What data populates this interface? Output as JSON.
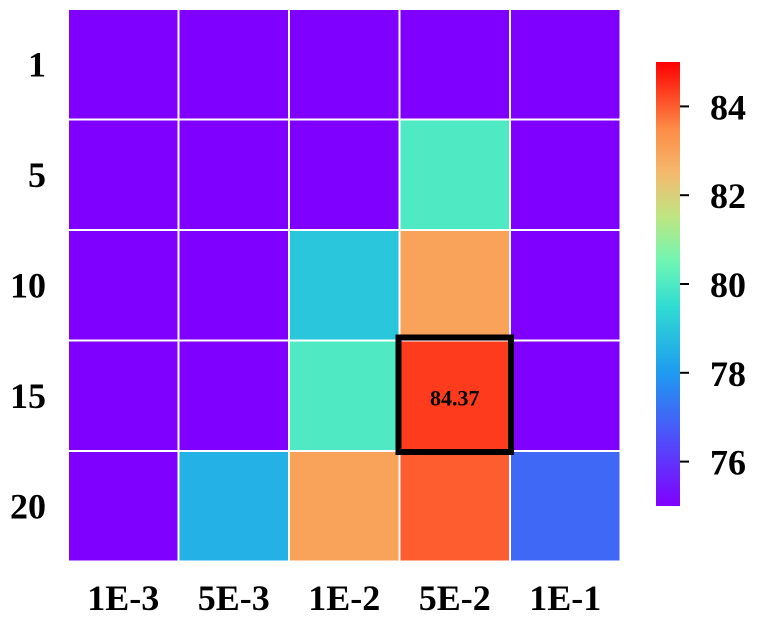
{
  "chart_data": {
    "type": "heatmap",
    "title": "",
    "xlabel": "",
    "ylabel": "",
    "x_categories": [
      "1E-3",
      "5E-3",
      "1E-2",
      "5E-2",
      "1E-1"
    ],
    "y_categories": [
      "1",
      "5",
      "10",
      "15",
      "20"
    ],
    "values": [
      [
        75,
        75,
        75,
        75,
        75
      ],
      [
        75,
        75,
        75,
        80,
        75
      ],
      [
        75,
        75,
        79,
        83,
        75
      ],
      [
        75,
        75,
        80,
        84.37,
        75
      ],
      [
        75,
        78.5,
        83,
        84,
        77
      ]
    ],
    "colorbar": {
      "min": 75,
      "max": 85,
      "ticks": [
        76,
        78,
        80,
        82,
        84
      ],
      "colormap": "rainbow",
      "position": "right"
    },
    "highlight": {
      "row": 3,
      "col": 3,
      "label": "84.37"
    },
    "grid": true
  }
}
